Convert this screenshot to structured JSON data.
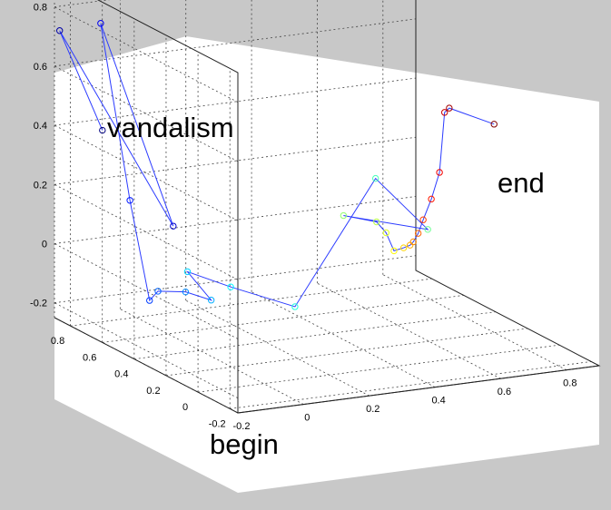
{
  "colors": {
    "figure_background": "#c8c8c8",
    "axes_background": "#ffffff",
    "grid": "#444444",
    "line": "#2c3cff"
  },
  "chart_data": {
    "type": "scatter",
    "subtype": "3d-line-with-markers",
    "title": "",
    "xlabel": "",
    "ylabel": "",
    "zlabel": "",
    "grid": true,
    "marker": "open-circle",
    "colormap": "jet (blue at begin, red at end)",
    "axes": {
      "x_ticks": [
        "-0.2",
        "0",
        "0.2",
        "0.4",
        "0.6",
        "0.8"
      ],
      "y_ticks": [
        "0.8",
        "0.6",
        "0.4",
        "0.2",
        "0",
        "-0.2"
      ],
      "z_ticks": [
        "0.8",
        "0.6",
        "0.4",
        "0.2",
        "0",
        "-0.2"
      ],
      "xlim": [
        -0.2,
        0.9
      ],
      "ylim": [
        -0.25,
        0.9
      ],
      "zlim": [
        -0.25,
        0.9
      ]
    },
    "annotations": {
      "vandalism": "vandalism",
      "end": "end",
      "begin": "begin"
    },
    "trajectory": {
      "x": [
        -0.19,
        -0.16,
        -0.12,
        -0.04,
        0.02,
        0.07,
        0.12,
        0.17,
        0.18,
        0.2,
        0.22,
        0.27,
        0.36,
        0.65,
        0.51,
        0.63,
        0.63,
        0.62,
        0.63,
        0.63,
        0.64,
        0.65,
        0.67,
        0.69,
        0.71,
        0.74,
        0.73,
        0.75
      ],
      "y": [
        0.62,
        0.95,
        0.32,
        0.94,
        0.88,
        0.86,
        0.91,
        0.84,
        0.7,
        0.89,
        0.66,
        0.36,
        0.04,
        0.31,
        0.55,
        0.59,
        0.53,
        0.46,
        0.42,
        0.38,
        0.38,
        0.37,
        0.38,
        0.37,
        0.36,
        0.39,
        0.34,
        0.1
      ],
      "z": [
        0.46,
        0.7,
        0.21,
        0.71,
        0.12,
        -0.22,
        -0.21,
        -0.2,
        -0.19,
        -0.15,
        -0.14,
        -0.13,
        0.38,
        0.09,
        0.09,
        0.04,
        0.02,
        -0.02,
        0.0,
        0.02,
        0.03,
        0.06,
        0.1,
        0.17,
        0.26,
        0.45,
        0.48,
        0.49
      ]
    }
  }
}
